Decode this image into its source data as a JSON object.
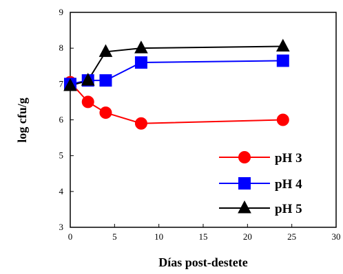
{
  "chart_data": {
    "type": "line",
    "title": "",
    "xlabel": "Días post-destete",
    "ylabel": "log cfu/g",
    "xlim": [
      0,
      30
    ],
    "ylim": [
      3,
      9
    ],
    "xticks": [
      0,
      5,
      10,
      15,
      20,
      25,
      30
    ],
    "yticks": [
      3,
      4,
      5,
      6,
      7,
      8,
      9
    ],
    "grid": false,
    "legend_position": "bottom-right",
    "series": [
      {
        "name": "pH 3",
        "color": "#ff0000",
        "marker": "circle",
        "x": [
          0,
          2,
          4,
          8,
          24
        ],
        "y": [
          7.05,
          6.5,
          6.2,
          5.9,
          6.0
        ]
      },
      {
        "name": "pH 4",
        "color": "#0000ff",
        "marker": "square",
        "x": [
          0,
          2,
          4,
          8,
          24
        ],
        "y": [
          7.0,
          7.1,
          7.1,
          7.6,
          7.65
        ]
      },
      {
        "name": "pH 5",
        "color": "#000000",
        "marker": "triangle",
        "x": [
          0,
          2,
          4,
          8,
          24
        ],
        "y": [
          6.95,
          7.1,
          7.9,
          8.0,
          8.05
        ]
      }
    ]
  }
}
